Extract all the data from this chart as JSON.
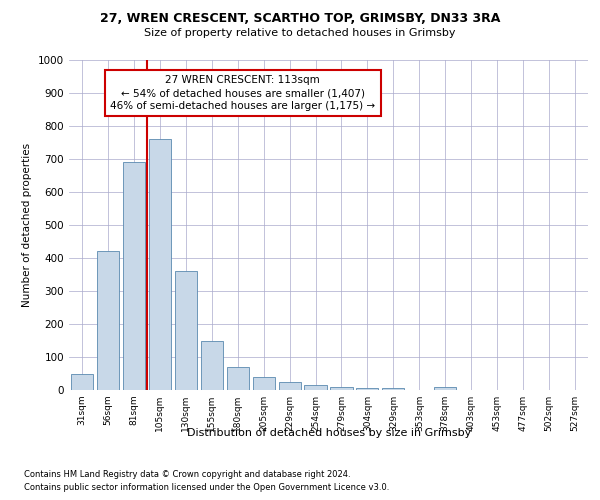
{
  "title1": "27, WREN CRESCENT, SCARTHO TOP, GRIMSBY, DN33 3RA",
  "title2": "Size of property relative to detached houses in Grimsby",
  "xlabel": "Distribution of detached houses by size in Grimsby",
  "ylabel": "Number of detached properties",
  "categories": [
    "31sqm",
    "56sqm",
    "81sqm",
    "105sqm",
    "130sqm",
    "155sqm",
    "180sqm",
    "205sqm",
    "229sqm",
    "254sqm",
    "279sqm",
    "304sqm",
    "329sqm",
    "353sqm",
    "378sqm",
    "403sqm",
    "453sqm",
    "477sqm",
    "502sqm",
    "527sqm"
  ],
  "values": [
    50,
    420,
    690,
    760,
    360,
    150,
    70,
    40,
    25,
    15,
    10,
    5,
    5,
    0,
    10,
    0,
    0,
    0,
    0,
    0
  ],
  "bar_color": "#c8d8e8",
  "bar_edge_color": "#5a8ab0",
  "red_line_index": 3,
  "annotation_text": "27 WREN CRESCENT: 113sqm\n← 54% of detached houses are smaller (1,407)\n46% of semi-detached houses are larger (1,175) →",
  "annotation_box_color": "#ffffff",
  "annotation_box_edge": "#cc0000",
  "red_line_color": "#cc0000",
  "ylim": [
    0,
    1000
  ],
  "yticks": [
    0,
    100,
    200,
    300,
    400,
    500,
    600,
    700,
    800,
    900,
    1000
  ],
  "background_color": "#ffffff",
  "grid_color": "#aaaacc",
  "footer1": "Contains HM Land Registry data © Crown copyright and database right 2024.",
  "footer2": "Contains public sector information licensed under the Open Government Licence v3.0."
}
